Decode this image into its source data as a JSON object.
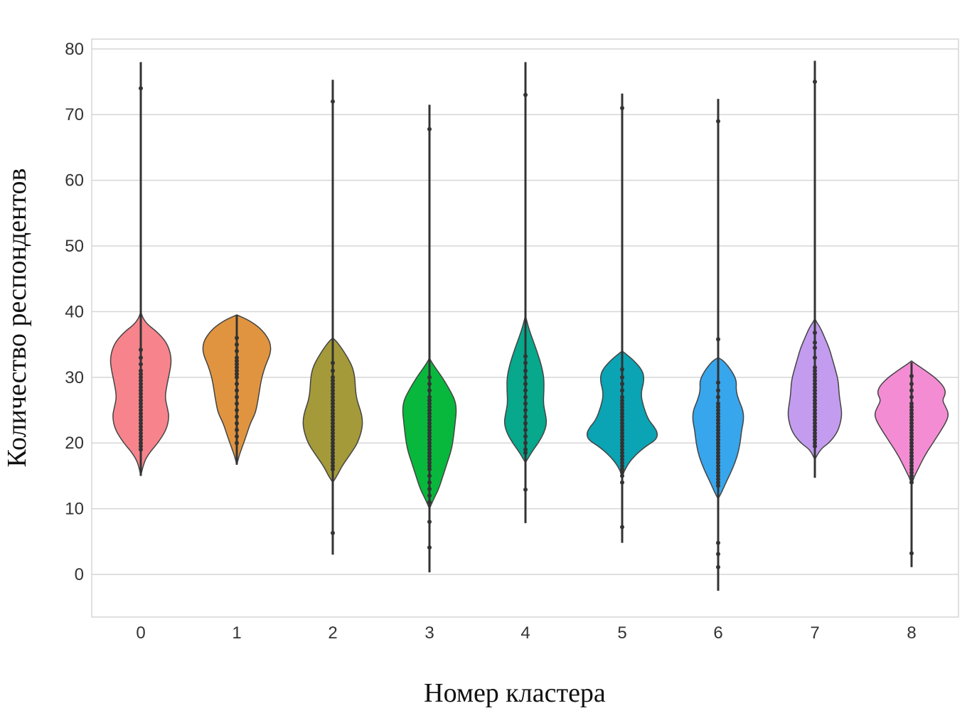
{
  "chart_data": {
    "type": "violin",
    "xlabel": "Номер кластера",
    "ylabel": "Количество респондентов",
    "ylim": [
      -6.5,
      81.5
    ],
    "yticks": [
      "0",
      "10",
      "20",
      "30",
      "40",
      "50",
      "60",
      "70",
      "80"
    ],
    "grid": true,
    "categories": [
      "0",
      "1",
      "2",
      "3",
      "4",
      "5",
      "6",
      "7",
      "8"
    ],
    "colors": [
      "#f7848c",
      "#e19440",
      "#a49a3a",
      "#08b83c",
      "#07a88c",
      "#0aa4b4",
      "#37a6ec",
      "#c39cef",
      "#f48cd4"
    ],
    "series": [
      {
        "min": 15,
        "max": 78,
        "points": [
          19,
          19.5,
          20,
          20.5,
          21,
          21.5,
          22,
          22.5,
          23,
          23.5,
          24,
          24.5,
          25,
          25.5,
          26,
          26.5,
          27,
          27.5,
          28,
          28.5,
          29,
          29.5,
          30,
          30.5,
          31,
          32,
          33,
          34.2,
          74
        ]
      },
      {
        "min": 16.7,
        "max": 39.5,
        "points": [
          20,
          21,
          22,
          23,
          24,
          25,
          26,
          27,
          28,
          29,
          30,
          30.5,
          31,
          31.5,
          32,
          32.5,
          33,
          34,
          35,
          36
        ]
      },
      {
        "min": 3,
        "max": 75.3,
        "points": [
          6.3,
          16,
          16.5,
          17,
          17.5,
          18,
          18.5,
          19,
          19.5,
          20,
          20.5,
          21,
          21.5,
          22,
          22.5,
          23,
          23.5,
          24,
          24.5,
          25,
          25.5,
          26,
          26.5,
          27,
          27.5,
          28,
          28.5,
          29,
          29.5,
          30,
          31,
          32.2,
          72
        ]
      },
      {
        "min": 0.3,
        "max": 71.5,
        "points": [
          4.1,
          8,
          11,
          12,
          13,
          14,
          15,
          16,
          16.5,
          17,
          17.5,
          18,
          18.5,
          19,
          19.5,
          20,
          20.5,
          21,
          21.5,
          22,
          22.5,
          23,
          23.5,
          24,
          24.5,
          25,
          25.5,
          26,
          26.5,
          27,
          28,
          29,
          30,
          67.8
        ]
      },
      {
        "min": 7.8,
        "max": 78,
        "points": [
          12.9,
          18.5,
          19,
          20,
          21,
          22,
          23,
          24,
          25,
          26,
          27,
          28,
          29,
          30,
          31,
          32.2,
          33.2,
          73
        ]
      },
      {
        "min": 4.8,
        "max": 73.2,
        "points": [
          7.2,
          14,
          15,
          15.5,
          16,
          16.5,
          17,
          17.5,
          18,
          18.5,
          19,
          19.5,
          20,
          20.5,
          21,
          21.5,
          22,
          22.5,
          23,
          23.5,
          24,
          24.5,
          25,
          25.5,
          26,
          26.5,
          27,
          28,
          29,
          30,
          31.2,
          71
        ]
      },
      {
        "min": -2.5,
        "max": 72.4,
        "points": [
          1.1,
          3.1,
          4.8,
          13.5,
          14,
          14.5,
          15,
          15.5,
          16,
          16.5,
          17,
          17.5,
          18,
          18.5,
          19,
          19.5,
          20,
          20.5,
          21,
          21.5,
          22,
          22.5,
          23,
          23.5,
          24,
          24.5,
          25,
          25.5,
          26,
          27,
          28,
          29.2,
          35.8,
          69
        ]
      },
      {
        "min": 14.7,
        "max": 78.2,
        "points": [
          19.5,
          20,
          20.5,
          21,
          21.5,
          22,
          22.5,
          23,
          23.5,
          24,
          24.5,
          25,
          25.5,
          26,
          26.5,
          27,
          27.5,
          28,
          28.5,
          29,
          29.5,
          30,
          30.5,
          31,
          31.5,
          33,
          34.5,
          35.3,
          36.8,
          75
        ]
      },
      {
        "min": 1.1,
        "max": 32.3,
        "points": [
          3.2,
          14,
          14.5,
          15,
          15.5,
          16,
          16.5,
          17,
          17.5,
          18,
          18.5,
          19,
          19.5,
          20,
          20.5,
          21,
          21.5,
          22,
          22.5,
          23,
          23.5,
          24,
          24.5,
          25,
          25.5,
          26,
          27,
          28,
          29,
          30.2
        ]
      }
    ]
  }
}
